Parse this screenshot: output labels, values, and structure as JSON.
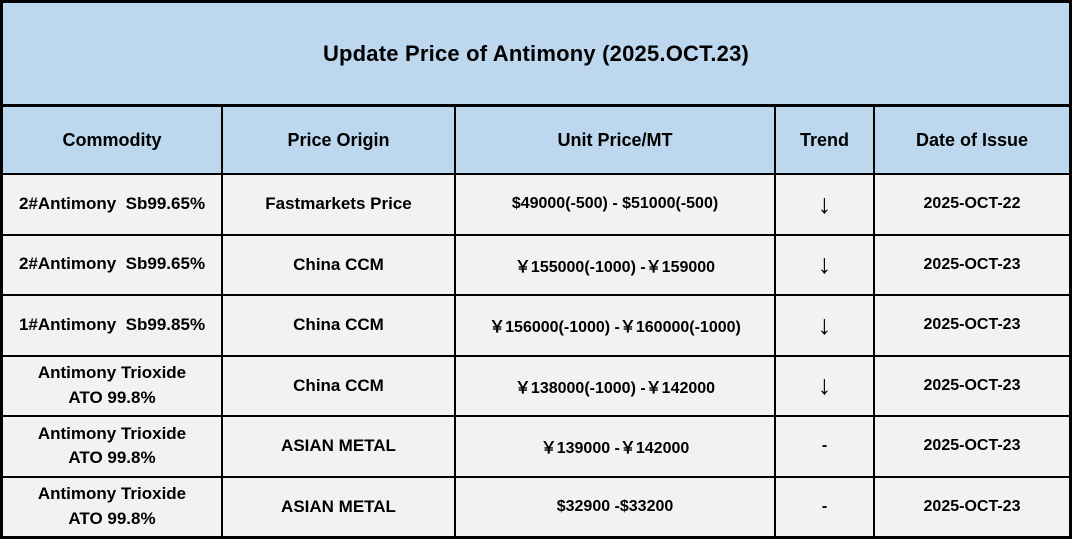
{
  "title": "Update Price of Antimony (2025.OCT.23)",
  "colors": {
    "header_bg": "#bdd7ee",
    "row_bg": "#f2f2f2",
    "border": "#000000",
    "text": "#000000"
  },
  "table": {
    "columns": {
      "commodity": "Commodity",
      "origin": "Price Origin",
      "price": "Unit Price/MT",
      "trend": "Trend",
      "date": "Date of Issue"
    },
    "rows": [
      {
        "commodity": "2#Antimony  Sb99.65%",
        "origin": "Fastmarkets Price",
        "price": "$49000(-500) - $51000(-500)",
        "trend": "↓",
        "date": "2025-OCT-22"
      },
      {
        "commodity": "2#Antimony  Sb99.65%",
        "origin": "China CCM",
        "price": "￥155000(-1000) -￥159000",
        "trend": "↓",
        "date": "2025-OCT-23"
      },
      {
        "commodity": "1#Antimony  Sb99.85%",
        "origin": "China CCM",
        "price": "￥156000(-1000) -￥160000(-1000)",
        "trend": "↓",
        "date": "2025-OCT-23"
      },
      {
        "commodity": "Antimony Trioxide\nATO 99.8%",
        "origin": "China CCM",
        "price": "￥138000(-1000) -￥142000",
        "trend": "↓",
        "date": "2025-OCT-23"
      },
      {
        "commodity": "Antimony Trioxide\nATO 99.8%",
        "origin": "ASIAN METAL",
        "price": "￥139000 -￥142000",
        "trend": "-",
        "date": "2025-OCT-23"
      },
      {
        "commodity": "Antimony Trioxide\nATO 99.8%",
        "origin": "ASIAN METAL",
        "price": "$32900 -$33200",
        "trend": "-",
        "date": "2025-OCT-23"
      }
    ]
  }
}
